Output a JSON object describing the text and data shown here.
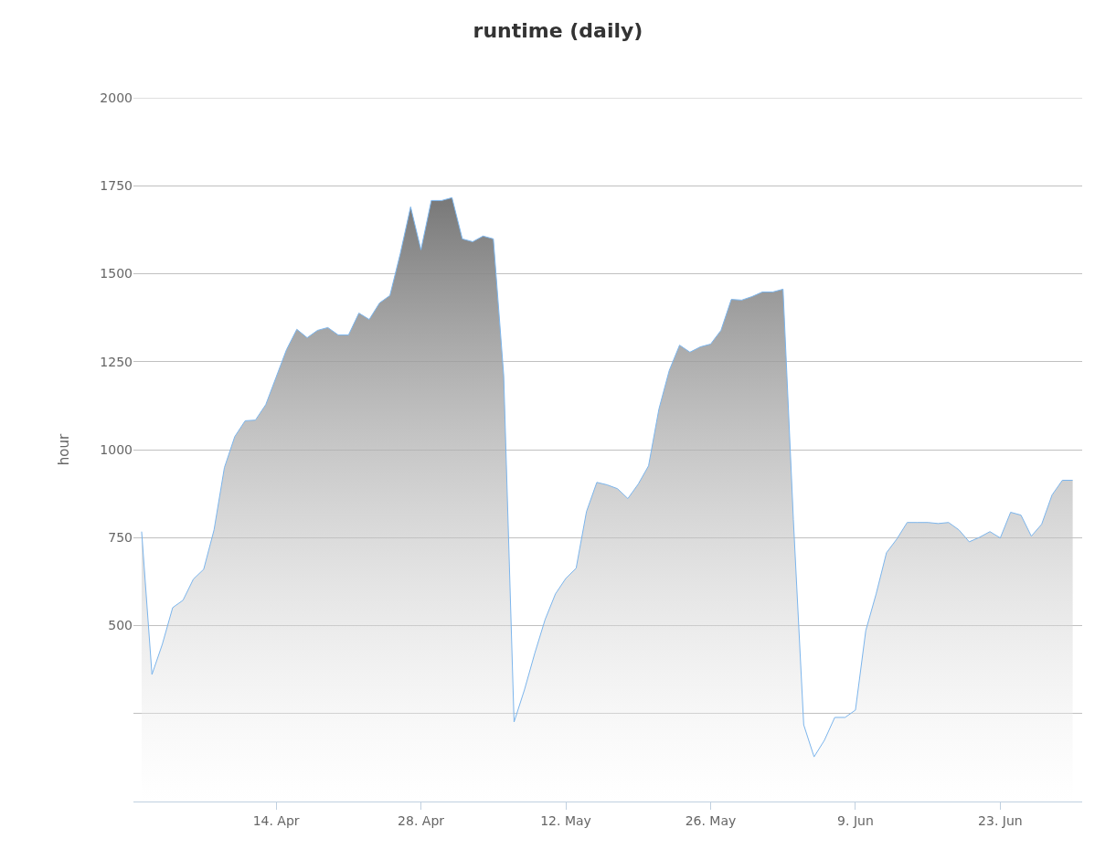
{
  "chart_data": {
    "type": "area",
    "title": "runtime (daily)",
    "ylabel": "hour",
    "x": [
      "--04-01",
      "--04-02",
      "--04-03",
      "--04-04",
      "--04-05",
      "--04-06",
      "--04-07",
      "--04-08",
      "--04-09",
      "--04-10",
      "--04-11",
      "--04-12",
      "--04-13",
      "--04-14",
      "--04-15",
      "--04-16",
      "--04-17",
      "--04-18",
      "--04-19",
      "--04-20",
      "--04-21",
      "--04-22",
      "--04-23",
      "--04-24",
      "--04-25",
      "--04-26",
      "--04-27",
      "--04-28",
      "--04-29",
      "--04-30",
      "--05-01",
      "--05-02",
      "--05-03",
      "--05-04",
      "--05-05",
      "--05-06",
      "--05-07",
      "--05-08",
      "--05-09",
      "--05-10",
      "--05-11",
      "--05-12",
      "--05-13",
      "--05-14",
      "--05-15",
      "--05-16",
      "--05-17",
      "--05-18",
      "--05-19",
      "--05-20",
      "--05-21",
      "--05-22",
      "--05-23",
      "--05-24",
      "--05-25",
      "--05-26",
      "--05-27",
      "--05-28",
      "--05-29",
      "--05-30",
      "--05-31",
      "--06-01",
      "--06-02",
      "--06-03",
      "--06-04",
      "--06-05",
      "--06-06",
      "--06-07",
      "--06-08",
      "--06-09",
      "--06-10",
      "--06-11",
      "--06-12",
      "--06-13",
      "--06-14",
      "--06-15",
      "--06-16",
      "--06-17",
      "--06-18",
      "--06-19",
      "--06-20",
      "--06-21",
      "--06-22",
      "--06-23",
      "--06-24",
      "--06-25",
      "--06-26",
      "--06-27",
      "--06-28",
      "--06-29",
      "--06-30"
    ],
    "series": [
      {
        "color": "#7cb5ec",
        "values": [
          767,
          361,
          447,
          551,
          572,
          632,
          660,
          772,
          949,
          1037,
          1082,
          1084,
          1128,
          1206,
          1284,
          1342,
          1318,
          1339,
          1347,
          1326,
          1326,
          1388,
          1370,
          1417,
          1438,
          1557,
          1690,
          1568,
          1708,
          1708,
          1716,
          1599,
          1591,
          1607,
          1599,
          1210,
          226,
          317,
          421,
          517,
          590,
          634,
          663,
          824,
          907,
          900,
          889,
          861,
          902,
          954,
          1115,
          1225,
          1297,
          1277,
          1292,
          1300,
          1339,
          1427,
          1425,
          1435,
          1448,
          1448,
          1456,
          801,
          218,
          127,
          174,
          239,
          239,
          260,
          486,
          590,
          707,
          746,
          793,
          793,
          793,
          790,
          793,
          772,
          738,
          751,
          767,
          749,
          822,
          814,
          754,
          788,
          871,
          913,
          913
        ]
      }
    ],
    "xlim": [
      "--03-31T05:00",
      "--06-30T22:00"
    ],
    "xticks": [
      {
        "value": "--04-14",
        "label": "14. Apr"
      },
      {
        "value": "--04-28",
        "label": "28. Apr"
      },
      {
        "value": "--05-12",
        "label": "12. May"
      },
      {
        "value": "--05-26",
        "label": "26. May"
      },
      {
        "value": "--06-09",
        "label": "9. Jun"
      },
      {
        "value": "--06-23",
        "label": "23. Jun"
      }
    ],
    "ylim": [
      0,
      2000
    ],
    "yticks": [
      {
        "value": 250,
        "label": null
      },
      500,
      750,
      1000,
      1250,
      1500,
      1750,
      2000
    ],
    "grid": "y",
    "marker": "none"
  }
}
